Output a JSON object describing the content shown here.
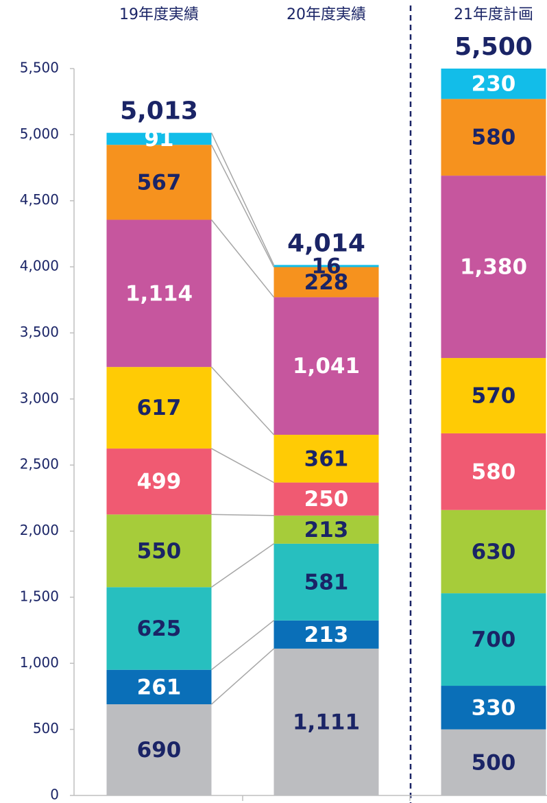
{
  "chart_data": {
    "type": "stacked_bar",
    "categories": [
      "19年度実績",
      "20年度実績",
      "21年度計画"
    ],
    "ylim": [
      0,
      5500
    ],
    "yticks": [
      0,
      500,
      {
        "value": 1000,
        "label": "1,000"
      },
      {
        "value": 1500,
        "label": "1,500"
      },
      {
        "value": 2000,
        "label": "2,000"
      },
      {
        "value": 2500,
        "label": "2,500"
      },
      {
        "value": 3000,
        "label": "3,000"
      },
      {
        "value": 3500,
        "label": "3,500"
      },
      {
        "value": 4000,
        "label": "4,000"
      },
      {
        "value": 4500,
        "label": "4,500"
      },
      {
        "value": 5000,
        "label": "5,000"
      },
      {
        "value": 5500,
        "label": "5,500"
      }
    ],
    "series": [
      {
        "color": "#bcbdc0",
        "values": [
          690,
          1111,
          500
        ],
        "value_labels": [
          "690",
          "1,111",
          "500"
        ],
        "label_colors": [
          "#1a2466",
          "#1a2466",
          "#1a2466"
        ]
      },
      {
        "color": "#0a6fb8",
        "values": [
          261,
          213,
          330
        ],
        "value_labels": [
          "261",
          "213",
          "330"
        ],
        "label_colors": [
          "#ffffff",
          "#ffffff",
          "#ffffff"
        ]
      },
      {
        "color": "#27bfbf",
        "values": [
          625,
          581,
          700
        ],
        "value_labels": [
          "625",
          "581",
          "700"
        ],
        "label_colors": [
          "#1a2466",
          "#1a2466",
          "#1a2466"
        ]
      },
      {
        "color": "#a6cc3a",
        "values": [
          550,
          213,
          630
        ],
        "value_labels": [
          "550",
          "213",
          "630"
        ],
        "label_colors": [
          "#1a2466",
          "#1a2466",
          "#1a2466"
        ]
      },
      {
        "color": "#f05a72",
        "values": [
          499,
          250,
          580
        ],
        "value_labels": [
          "499",
          "250",
          "580"
        ],
        "label_colors": [
          "#ffffff",
          "#ffffff",
          "#ffffff"
        ]
      },
      {
        "color": "#ffcb05",
        "values": [
          617,
          361,
          570
        ],
        "value_labels": [
          "617",
          "361",
          "570"
        ],
        "label_colors": [
          "#1a2466",
          "#1a2466",
          "#1a2466"
        ]
      },
      {
        "color": "#c6569e",
        "values": [
          1114,
          1041,
          1380
        ],
        "value_labels": [
          "1,114",
          "1,041",
          "1,380"
        ],
        "label_colors": [
          "#ffffff",
          "#ffffff",
          "#ffffff"
        ]
      },
      {
        "color": "#f6921e",
        "values": [
          567,
          228,
          580
        ],
        "value_labels": [
          "567",
          "228",
          "580"
        ],
        "label_colors": [
          "#1a2466",
          "#1a2466",
          "#1a2466"
        ]
      },
      {
        "color": "#12bde9",
        "values": [
          91,
          16,
          230
        ],
        "value_labels": [
          "91",
          "16",
          "230"
        ],
        "label_colors": [
          "#ffffff",
          "#1a2466",
          "#ffffff"
        ]
      }
    ],
    "totals": {
      "values": [
        5013,
        4014,
        5500
      ],
      "value_labels": [
        "5,013",
        "4,014",
        "5,500"
      ],
      "color": "#1a2466"
    }
  }
}
